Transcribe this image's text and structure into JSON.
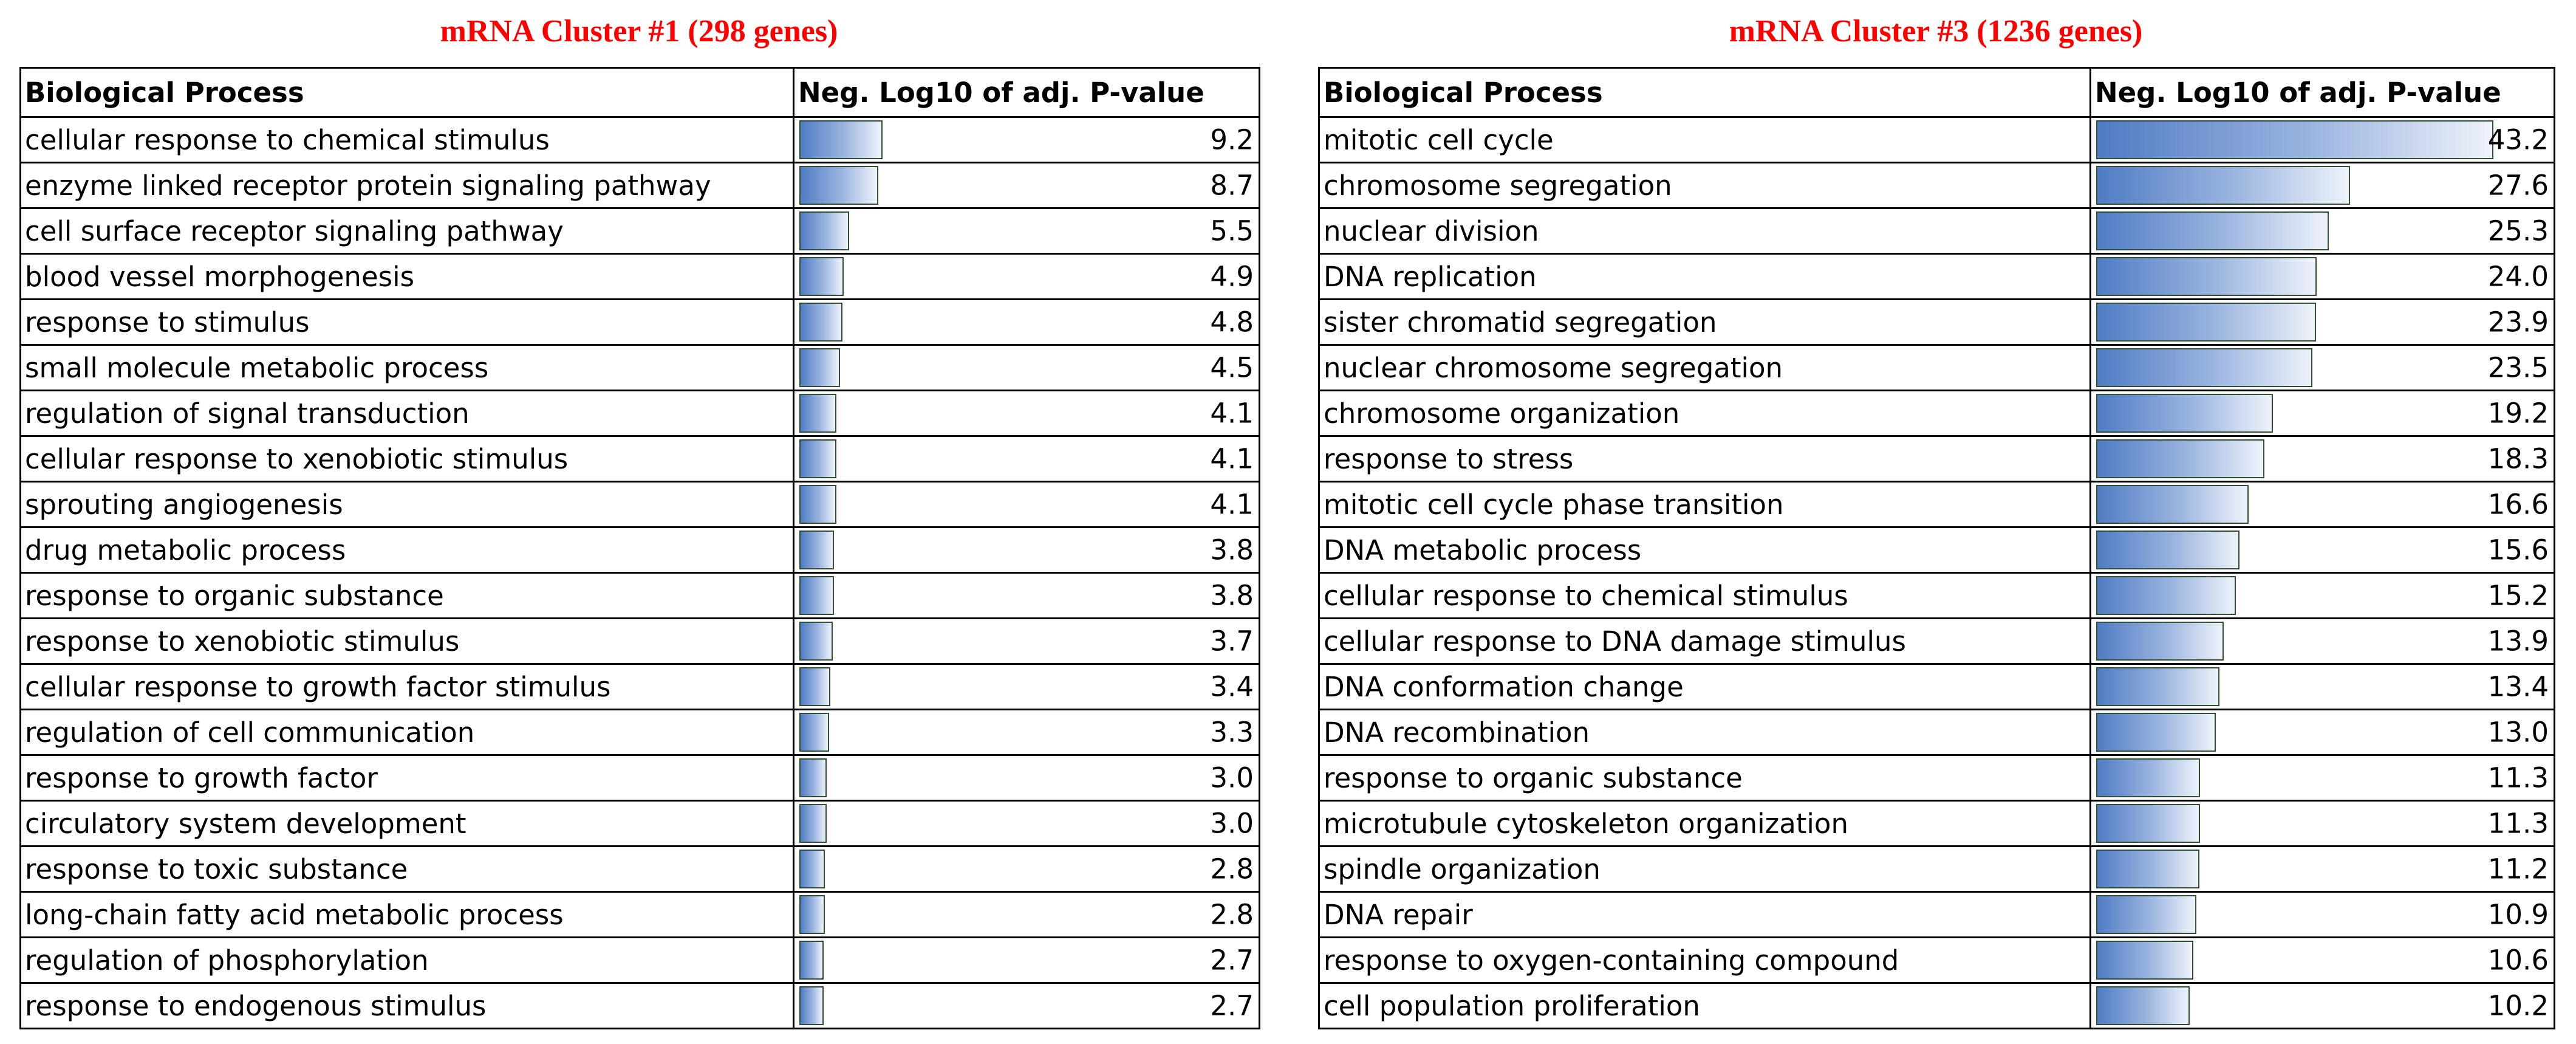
{
  "chart_data": [
    {
      "type": "table",
      "title": "mRNA Cluster #1 (298 genes)",
      "columns": [
        "Biological Process",
        "Neg. Log10 of adj. P-value"
      ],
      "xlim": [
        0,
        9.2
      ],
      "categories": [
        "cellular response to chemical stimulus",
        "enzyme linked receptor protein signaling pathway",
        "cell surface receptor signaling pathway",
        "blood vessel morphogenesis",
        "response to stimulus",
        "small molecule metabolic process",
        "regulation of signal transduction",
        "cellular response to xenobiotic stimulus",
        "sprouting angiogenesis",
        "drug metabolic process",
        "response to organic substance",
        "response to xenobiotic stimulus",
        "cellular response to growth factor stimulus",
        "regulation of cell communication",
        "response to growth factor",
        "circulatory system development",
        "response to toxic substance",
        "long-chain fatty acid metabolic process",
        "regulation of phosphorylation",
        "response to endogenous stimulus"
      ],
      "values": [
        9.2,
        8.7,
        5.5,
        4.9,
        4.8,
        4.5,
        4.1,
        4.1,
        4.1,
        3.8,
        3.8,
        3.7,
        3.4,
        3.3,
        3.0,
        3.0,
        2.8,
        2.8,
        2.7,
        2.7
      ],
      "value_labels": [
        "9.2",
        "8.7",
        "5.5",
        "4.9",
        "4.8",
        "4.5",
        "4.1",
        "4.1",
        "4.1",
        "3.8",
        "3.8",
        "3.7",
        "3.4",
        "3.3",
        "3.0",
        "3.0",
        "2.8",
        "2.8",
        "2.7",
        "2.7"
      ]
    },
    {
      "type": "table",
      "title": "mRNA Cluster #3 (1236 genes)",
      "columns": [
        "Biological Process",
        "Neg. Log10 of adj. P-value"
      ],
      "xlim": [
        0,
        43.2
      ],
      "categories": [
        "mitotic cell cycle",
        "chromosome segregation",
        "nuclear division",
        "DNA replication",
        "sister chromatid segregation",
        "nuclear chromosome segregation",
        "chromosome organization",
        "response to stress",
        "mitotic cell cycle phase transition",
        "DNA metabolic process",
        "cellular response to chemical stimulus",
        "cellular response to DNA damage stimulus",
        "DNA conformation change",
        "DNA recombination",
        "response to organic substance",
        "microtubule cytoskeleton organization",
        "spindle organization",
        "DNA repair",
        "response to oxygen-containing compound",
        "cell population proliferation"
      ],
      "values": [
        43.2,
        27.6,
        25.3,
        24.0,
        23.9,
        23.5,
        19.2,
        18.3,
        16.6,
        15.6,
        15.2,
        13.9,
        13.4,
        13.0,
        11.3,
        11.3,
        11.2,
        10.9,
        10.6,
        10.2
      ],
      "value_labels": [
        "43.2",
        "27.6",
        "25.3",
        "24.0",
        "23.9",
        "23.5",
        "19.2",
        "18.3",
        "16.6",
        "15.6",
        "15.2",
        "13.9",
        "13.4",
        "13.0",
        "11.3",
        "11.3",
        "11.2",
        "10.9",
        "10.6",
        "10.2"
      ]
    }
  ],
  "colors": {
    "title": "#ff0000",
    "bar_start": "#4f7cc4",
    "bar_end": "#eef2fa",
    "bar_border": "#2f4f2f"
  }
}
